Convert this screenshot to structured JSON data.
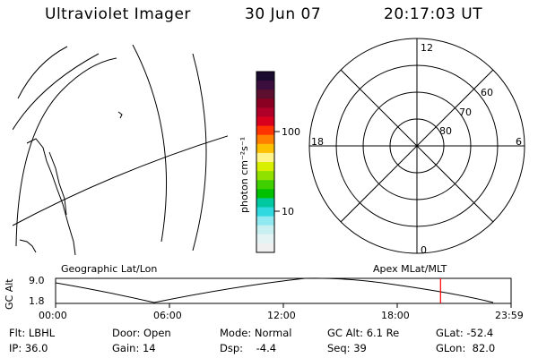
{
  "header": {
    "instrument": "Ultraviolet Imager",
    "date": "30 Jun 07",
    "time": "20:17:03 UT"
  },
  "colorbar": {
    "unit_label": "photon cm⁻²s⁻¹",
    "tick_high": "100",
    "tick_low": "10",
    "colors": [
      "#1a0a2e",
      "#3b0f3d",
      "#5c0f2e",
      "#8a0022",
      "#b0002a",
      "#d8001c",
      "#ff3300",
      "#ff7f00",
      "#ffc000",
      "#fff48a",
      "#d8f000",
      "#90e000",
      "#40d000",
      "#00c000",
      "#00c8a0",
      "#30d8e0",
      "#90e8f0",
      "#c8f0f0",
      "#e4f4f4",
      "#f0f0f0"
    ]
  },
  "left_panel": {
    "label": "Geographic Lat/Lon"
  },
  "right_panel": {
    "label": "Apex MLat/MLT",
    "mlt_labels": {
      "top": "12",
      "bottom": "0",
      "left": "18",
      "right": "6"
    },
    "lat_labels": [
      "60",
      "70",
      "80"
    ]
  },
  "timeline": {
    "ylabel": "GC Alt",
    "y_ticks": [
      "9.0",
      "1.8"
    ],
    "x_ticks": [
      "00:00",
      "06:00",
      "12:00",
      "18:00",
      "23:59"
    ],
    "current_time_fraction": 0.845,
    "marker_color": "#ff0000"
  },
  "status": {
    "filter": "Flt: LBHL",
    "door": "Door: Open",
    "mode": "Mode: Normal",
    "gc_alt": "GC Alt: 6.1 Re",
    "glat": "GLat: -52.4",
    "ip": "IP: 36.0",
    "gain": "Gain: 14",
    "dsp": "Dsp:    -4.4",
    "seq": "Seq: 39",
    "glon": "GLon:  82.0"
  }
}
